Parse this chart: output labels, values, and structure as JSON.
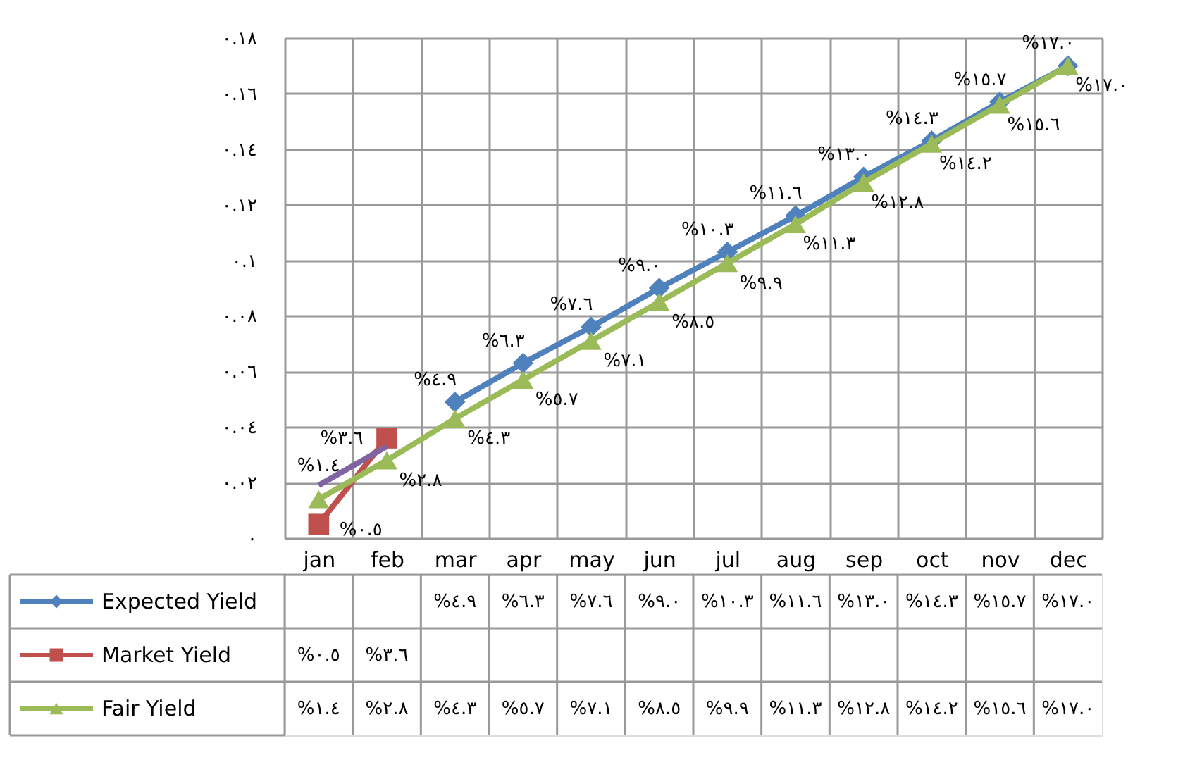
{
  "chart_data": {
    "type": "line",
    "categories": [
      "jan",
      "feb",
      "mar",
      "apr",
      "may",
      "jun",
      "jul",
      "aug",
      "sep",
      "oct",
      "nov",
      "dec"
    ],
    "ylim": [
      0,
      0.18
    ],
    "yticks": [
      {
        "value": 0,
        "label": "٠"
      },
      {
        "value": 0.02,
        "label": "٠.٠٢"
      },
      {
        "value": 0.04,
        "label": "٠.٠٤"
      },
      {
        "value": 0.06,
        "label": "٠.٠٦"
      },
      {
        "value": 0.08,
        "label": "٠.٠٨"
      },
      {
        "value": 0.1,
        "label": "٠.١"
      },
      {
        "value": 0.12,
        "label": "٠.١٢"
      },
      {
        "value": 0.14,
        "label": "٠.١٤"
      },
      {
        "value": 0.16,
        "label": "٠.١٦"
      },
      {
        "value": 0.18,
        "label": "٠.١٨"
      }
    ],
    "grid": true,
    "legend": "bottom",
    "series": [
      {
        "name": "Expected Yield",
        "color": "#4f81bd",
        "marker": "diamond",
        "values": [
          null,
          null,
          0.049,
          0.063,
          0.076,
          0.09,
          0.103,
          0.116,
          0.13,
          0.143,
          0.157,
          0.17
        ],
        "value_labels": [
          null,
          null,
          "%٤.٩",
          "%٦.٣",
          "%٧.٦",
          "%٩.٠",
          "%١٠.٣",
          "%١١.٦",
          "%١٣.٠",
          "%١٤.٣",
          "%١٥.٧",
          "%١٧.٠"
        ]
      },
      {
        "name": "Market Yield",
        "color": "#c0504d",
        "marker": "square",
        "values": [
          0.005,
          0.036,
          null,
          null,
          null,
          null,
          null,
          null,
          null,
          null,
          null,
          null
        ],
        "value_labels": [
          "%٠.٥",
          "%٣.٦",
          null,
          null,
          null,
          null,
          null,
          null,
          null,
          null,
          null,
          null
        ]
      },
      {
        "name": "Fair Yield",
        "color": "#9bbb59",
        "marker": "triangle",
        "values": [
          0.014,
          0.028,
          0.043,
          0.057,
          0.071,
          0.085,
          0.099,
          0.113,
          0.128,
          0.142,
          0.156,
          0.17
        ],
        "value_labels": [
          "%١.٤",
          "%٢.٨",
          "%٤.٣",
          "%٥.٧",
          "%٧.١",
          "%٨.٥",
          "%٩.٩",
          "%١١.٣",
          "%١٢.٨",
          "%١٤.٢",
          "%١٥.٦",
          "%١٧.٠"
        ]
      },
      {
        "color": "#8064a2",
        "marker": "none",
        "values": [
          0.019,
          0.033,
          null,
          null,
          null,
          null,
          null,
          null,
          null,
          null,
          null,
          null
        ]
      }
    ]
  }
}
